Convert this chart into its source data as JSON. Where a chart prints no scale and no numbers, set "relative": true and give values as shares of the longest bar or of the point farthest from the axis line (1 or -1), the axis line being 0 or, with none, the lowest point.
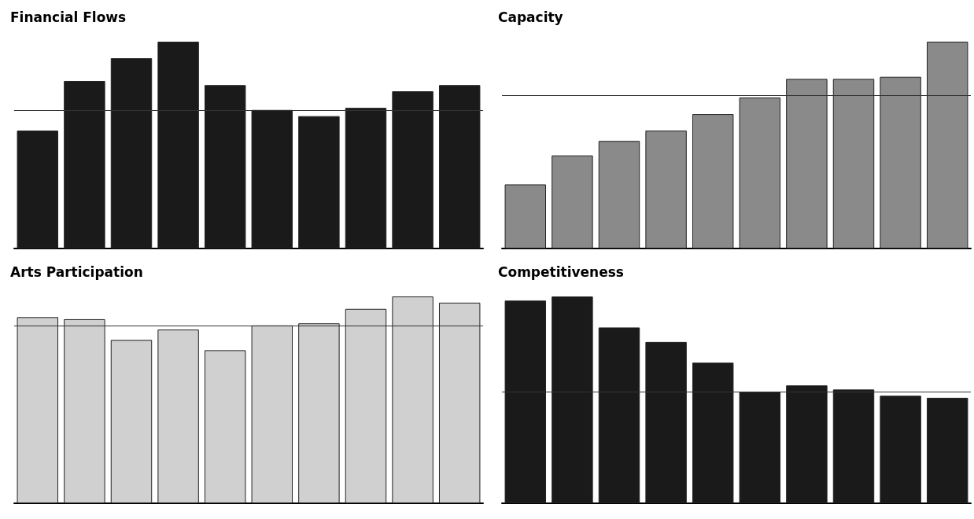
{
  "chart_data": [
    {
      "type": "bar",
      "title": "Financial Flows",
      "relative": true,
      "categories": [
        null,
        null,
        null,
        null,
        null,
        null,
        null,
        null,
        null,
        null
      ],
      "color": "#1a1a1a",
      "values": [
        0.57,
        0.81,
        0.92,
        1,
        0.79,
        0.67,
        0.64,
        0.68,
        0.76,
        0.79
      ],
      "ref_lines": [
        {
          "axis": "y",
          "value": 0.67,
          "color": "#333333"
        }
      ]
    },
    {
      "type": "bar",
      "title": "Capacity",
      "relative": true,
      "categories": [
        null,
        null,
        null,
        null,
        null,
        null,
        null,
        null,
        null,
        null
      ],
      "color": "#8a8a8a",
      "values": [
        0.31,
        0.45,
        0.52,
        0.57,
        0.65,
        0.73,
        0.82,
        0.82,
        0.83,
        1
      ],
      "ref_lines": [
        {
          "axis": "y",
          "value": 0.74,
          "color": "#333333"
        }
      ]
    },
    {
      "type": "bar",
      "title": "Arts Participation",
      "relative": true,
      "categories": [
        null,
        null,
        null,
        null,
        null,
        null,
        null,
        null,
        null,
        null
      ],
      "color": "#d0d0d0",
      "values": [
        0.9,
        0.89,
        0.79,
        0.84,
        0.74,
        0.86,
        0.87,
        0.94,
        1,
        0.97
      ],
      "ref_lines": [
        {
          "axis": "y",
          "value": 0.86,
          "color": "#333333"
        }
      ]
    },
    {
      "type": "bar",
      "title": "Competitiveness",
      "relative": true,
      "categories": [
        null,
        null,
        null,
        null,
        null,
        null,
        null,
        null,
        null,
        null
      ],
      "color": "#1a1a1a",
      "values": [
        0.98,
        1,
        0.85,
        0.78,
        0.68,
        0.54,
        0.57,
        0.55,
        0.52,
        0.51
      ],
      "ref_lines": [
        {
          "axis": "y",
          "value": 0.54,
          "color": "#333333"
        }
      ]
    }
  ]
}
